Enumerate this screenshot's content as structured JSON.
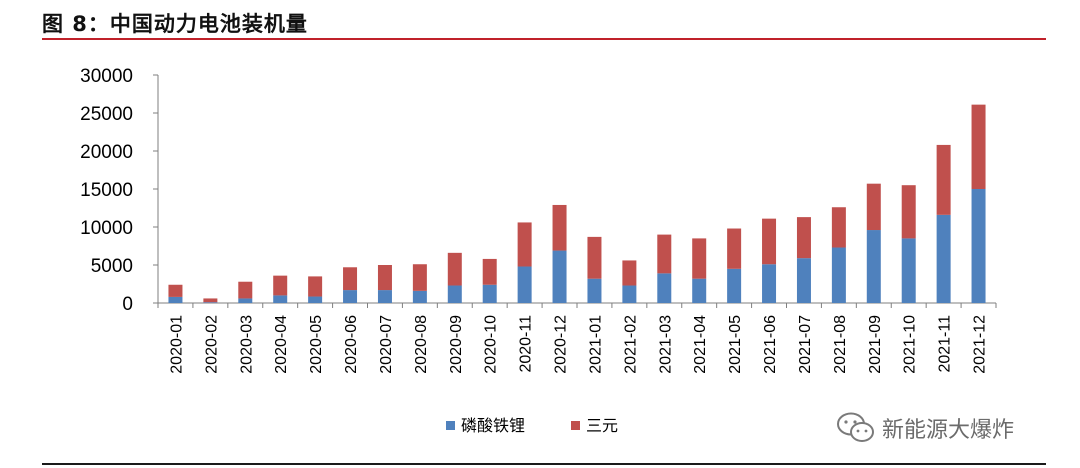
{
  "title": "图 8：中国动力电池装机量",
  "watermark": "新能源大爆炸",
  "colors": {
    "lfp": "#4f81bd",
    "ncm": "#c0504d",
    "accent": "#c0212a"
  },
  "chart_data": {
    "type": "bar",
    "stacked": true,
    "categories": [
      "2020-01",
      "2020-02",
      "2020-03",
      "2020-04",
      "2020-05",
      "2020-06",
      "2020-07",
      "2020-08",
      "2020-09",
      "2020-10",
      "2020-11",
      "2020-12",
      "2021-01",
      "2021-02",
      "2021-03",
      "2021-04",
      "2021-05",
      "2021-06",
      "2021-07",
      "2021-08",
      "2021-09",
      "2021-10",
      "2021-11",
      "2021-12"
    ],
    "series": [
      {
        "name": "磷酸铁锂",
        "color": "#4f81bd",
        "values": [
          800,
          100,
          600,
          1000,
          850,
          1700,
          1700,
          1600,
          2300,
          2400,
          4800,
          6900,
          3200,
          2300,
          3900,
          3200,
          4500,
          5100,
          5900,
          7300,
          9600,
          8500,
          11600,
          15000
        ]
      },
      {
        "name": "三元",
        "color": "#c0504d",
        "values": [
          1600,
          500,
          2200,
          2600,
          2650,
          3000,
          3300,
          3500,
          4300,
          3400,
          5800,
          6000,
          5500,
          3300,
          5100,
          5300,
          5300,
          6000,
          5400,
          5300,
          6100,
          7000,
          9200,
          11100
        ]
      }
    ],
    "ylim": [
      0,
      30000
    ],
    "yticks": [
      "0",
      "5000",
      "10000",
      "15000",
      "20000",
      "25000",
      "30000"
    ],
    "xlabel": "",
    "ylabel": "",
    "legend": "bottom-center",
    "grid": false
  }
}
